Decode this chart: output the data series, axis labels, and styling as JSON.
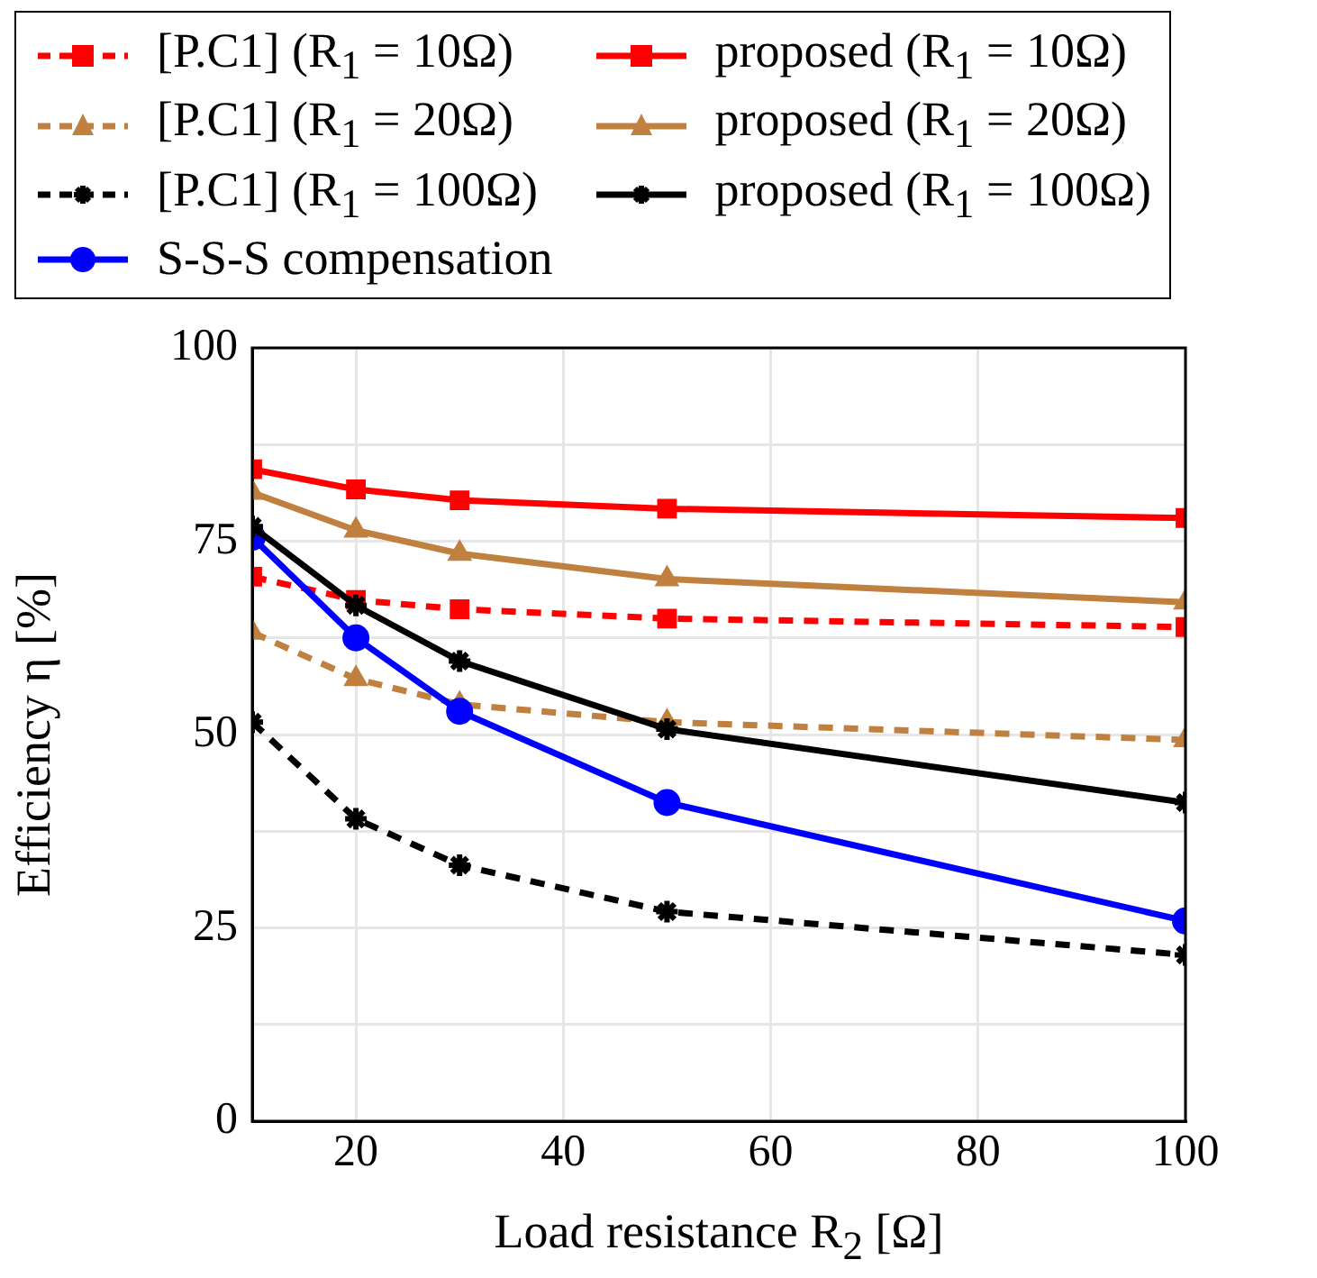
{
  "chart_data": {
    "type": "line",
    "xlabel": "Load resistance R$_{2}$ [Ω]",
    "ylabel": "Efficiency η [%]",
    "x": [
      10,
      20,
      30,
      50,
      100
    ],
    "xlim": [
      10,
      100
    ],
    "xticks": [
      20,
      40,
      60,
      80,
      100
    ],
    "ylim": [
      0,
      100
    ],
    "yticks": [
      0,
      {
        "value": 12.5,
        "label": null
      },
      25,
      {
        "value": 37.5,
        "label": null
      },
      50,
      {
        "value": 62.5,
        "label": null
      },
      75,
      {
        "value": 87.5,
        "label": null
      },
      100
    ],
    "grid": true,
    "legend": "top",
    "series": [
      {
        "name": "[P.C1] (R$_{1}$ = 10Ω)",
        "color": "#ff0000",
        "marker": "square",
        "line_style": "dashed",
        "values": [
          70.4,
          67.4,
          66.2,
          65.0,
          63.9
        ]
      },
      {
        "name": "[P.C1] (R$_{1}$ = 20Ω)",
        "color": "#bf8040",
        "marker": "triangle",
        "line_style": "dashed",
        "values": [
          63.2,
          57.2,
          53.9,
          51.6,
          49.3
        ]
      },
      {
        "name": "[P.C1] (R$_{1}$ = 100Ω)",
        "color": "#000000",
        "marker": "cross",
        "line_style": "dashed",
        "values": [
          51.6,
          39.1,
          33.1,
          27.1,
          21.5
        ]
      },
      {
        "name": "S-S-S compensation",
        "color": "#0000ff",
        "marker": "circle",
        "line_style": "solid",
        "values": [
          75.5,
          62.5,
          53.0,
          41.2,
          25.9
        ]
      },
      {
        "name": "proposed (R$_{1}$ = 10Ω)",
        "color": "#ff0000",
        "marker": "square",
        "line_style": "solid",
        "values": [
          84.3,
          81.7,
          80.3,
          79.2,
          78.0
        ]
      },
      {
        "name": "proposed (R$_{1}$ = 20Ω)",
        "color": "#bf8040",
        "marker": "triangle",
        "line_style": "solid",
        "values": [
          81.3,
          76.4,
          73.4,
          70.1,
          67.1
        ]
      },
      {
        "name": "proposed (R$_{1}$ = 100Ω)",
        "color": "#000000",
        "marker": "cross",
        "line_style": "solid",
        "values": [
          76.9,
          66.7,
          59.5,
          50.7,
          41.2
        ]
      }
    ]
  }
}
